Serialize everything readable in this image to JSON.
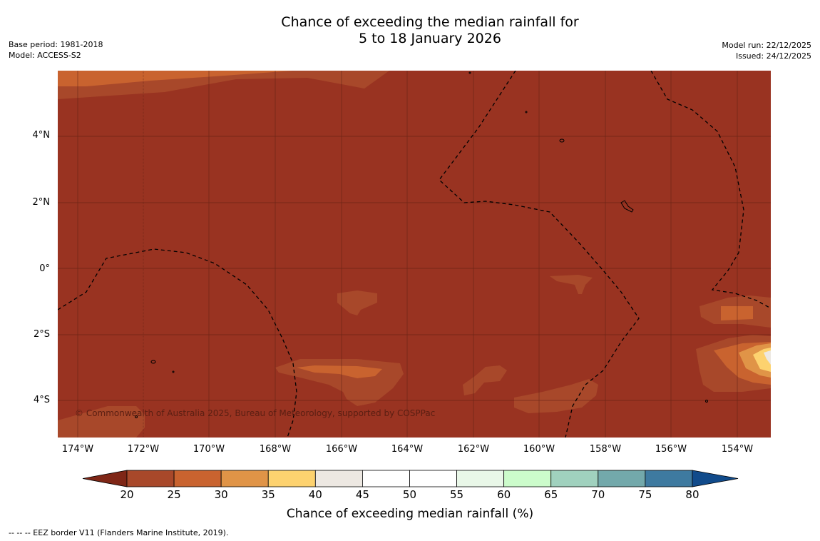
{
  "title": {
    "line1": "Chance of exceeding the median rainfall for",
    "line2": "5 to 18 January 2026"
  },
  "meta_left": {
    "base_period": "Base period: 1981-2018",
    "model": "Model: ACCESS-S2"
  },
  "meta_right": {
    "model_run": "Model run: 22/12/2025",
    "issued": "Issued: 24/12/2025"
  },
  "map": {
    "background_color": "#993321",
    "copyright": "© Commonwealth of Australia 2025, Bureau of Meteorology, supported by COSPPac",
    "lat_labels": [
      "4°N",
      "2°N",
      "0°",
      "2°S",
      "4°S"
    ],
    "lon_labels": [
      "174°W",
      "172°W",
      "170°W",
      "168°W",
      "166°W",
      "164°W",
      "162°W",
      "160°W",
      "158°W",
      "156°W",
      "154°W"
    ]
  },
  "colorbar": {
    "ticks": [
      "20",
      "25",
      "30",
      "35",
      "40",
      "45",
      "50",
      "55",
      "60",
      "65",
      "70",
      "75",
      "80"
    ],
    "colors": [
      "#7f2616",
      "#a8482a",
      "#c9632f",
      "#e09447",
      "#fdd26f",
      "#ede8e2",
      "#ffffff",
      "#ffffff",
      "#e9f7e8",
      "#ccfccb",
      "#a0d1be",
      "#73a9ab",
      "#3e7aa0",
      "#114b8b"
    ],
    "label": "Chance of exceeding median rainfall (%)"
  },
  "footer": "--  --  -- EEZ border V11 (Flanders Marine Institute, 2019)."
}
